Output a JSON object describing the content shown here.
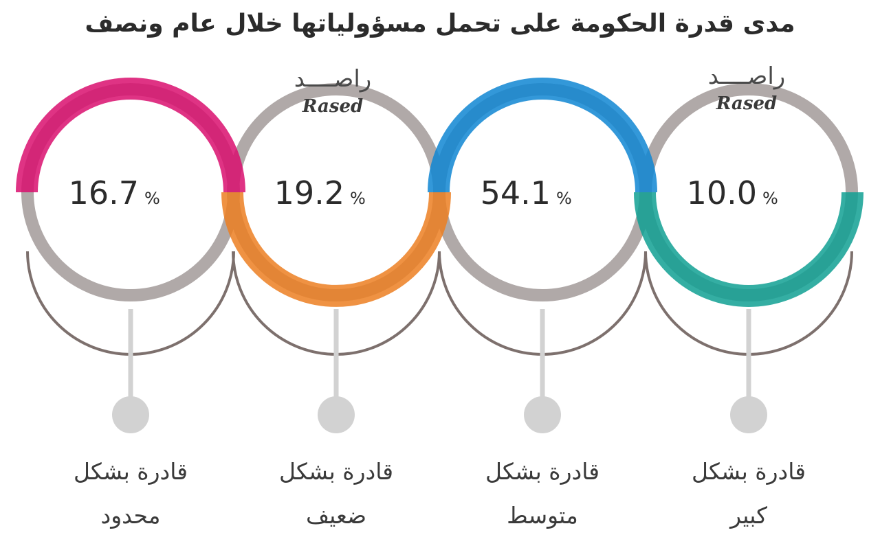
{
  "chart_data": {
    "type": "pie",
    "title": "مدى قدرة الحكومة على تحمل مسؤولياتها خلال عام ونصف",
    "unit": "%",
    "categories": [
      {
        "line1": "قادرة بشكل",
        "line2": "محدود",
        "value": 16.7,
        "label": "16.7",
        "color": "#d90f6e"
      },
      {
        "line1": "قادرة بشكل",
        "line2": "ضعيف",
        "value": 19.2,
        "label": "19.2",
        "color": "#ec7f22"
      },
      {
        "line1": "قادرة بشكل",
        "line2": "متوسط",
        "value": 54.1,
        "label": "54.1",
        "color": "#0f86d2"
      },
      {
        "line1": "قادرة بشكل",
        "line2": "كبير",
        "value": 10.0,
        "label": "10.0",
        "color": "#10a093"
      }
    ]
  },
  "watermark": {
    "arabic": "راصــــد",
    "latin": "Rased"
  },
  "colors": {
    "ring": "#b0a9a8",
    "bracket": "#7d706d",
    "stem": "#d2d2d2",
    "dot": "#d2d2d2"
  }
}
